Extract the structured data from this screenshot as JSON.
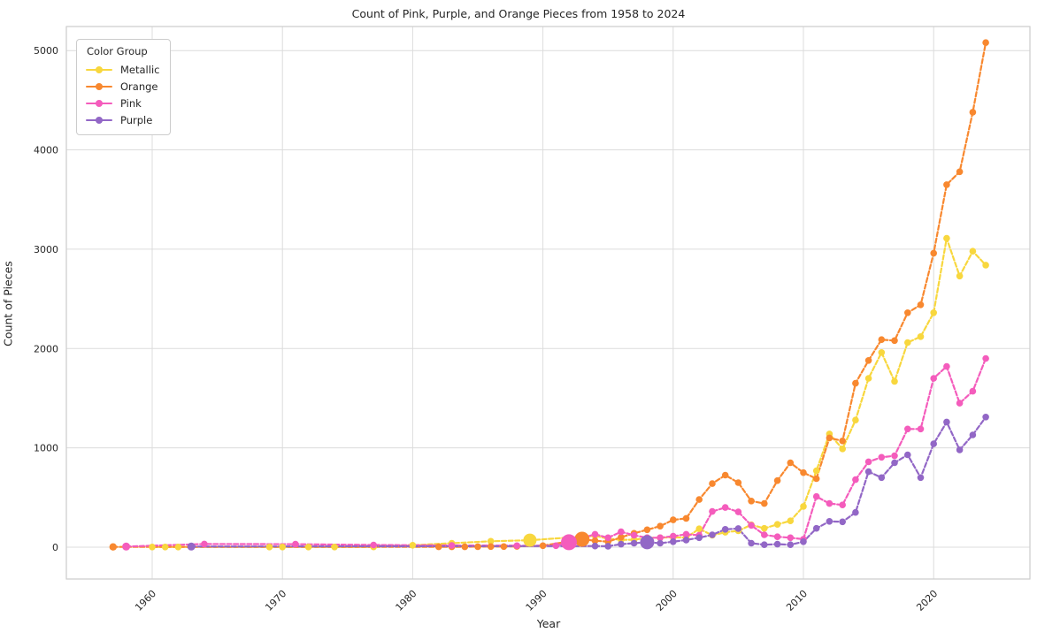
{
  "figure": {
    "title": "Count of Pink, Purple, and Orange Pieces from 1958 to 2024",
    "x_axis_label": "Year",
    "y_axis_label": "Count of Pieces"
  },
  "legend": {
    "title": "Color Group"
  },
  "chart_data": {
    "type": "line",
    "title": "Count of Pink, Purple, and Orange Pieces from 1958 to 2024",
    "xlabel": "Year",
    "ylabel": "Count of Pieces",
    "grid": true,
    "legend_position": "upper left",
    "x_ticks": [
      1960,
      1970,
      1980,
      1990,
      2000,
      2010,
      2020
    ],
    "y_ticks": [
      0,
      1000,
      2000,
      3000,
      4000,
      5000
    ],
    "xlim": [
      1953.4,
      2027.4
    ],
    "ylim": [
      -320,
      5242
    ],
    "line_style": "dashed",
    "marker": "circle",
    "series": [
      {
        "name": "Metallic",
        "color": "#F8D73E",
        "points": [
          [
            1960,
            2
          ],
          [
            1961,
            2
          ],
          [
            1962,
            2
          ],
          [
            1969,
            2
          ],
          [
            1970,
            2
          ],
          [
            1972,
            2
          ],
          [
            1974,
            2
          ],
          [
            1977,
            3
          ],
          [
            1980,
            20
          ],
          [
            1983,
            40
          ],
          [
            1986,
            60
          ],
          [
            1989,
            70
          ],
          [
            1994,
            115
          ],
          [
            1995,
            85
          ],
          [
            1996,
            75
          ],
          [
            1997,
            75
          ],
          [
            1998,
            95
          ],
          [
            1999,
            95
          ],
          [
            2000,
            100
          ],
          [
            2001,
            95
          ],
          [
            2002,
            185
          ],
          [
            2003,
            120
          ],
          [
            2004,
            150
          ],
          [
            2005,
            165
          ],
          [
            2006,
            225
          ],
          [
            2007,
            190
          ],
          [
            2008,
            230
          ],
          [
            2009,
            265
          ],
          [
            2010,
            410
          ],
          [
            2011,
            770
          ],
          [
            2012,
            1140
          ],
          [
            2013,
            990
          ],
          [
            2014,
            1280
          ],
          [
            2015,
            1700
          ],
          [
            2016,
            1960
          ],
          [
            2017,
            1670
          ],
          [
            2018,
            2060
          ],
          [
            2019,
            2120
          ],
          [
            2020,
            2360
          ],
          [
            2021,
            3110
          ],
          [
            2022,
            2730
          ],
          [
            2023,
            2980
          ],
          [
            2024,
            2840
          ]
        ]
      },
      {
        "name": "Orange",
        "color": "#F8882F",
        "points": [
          [
            1957,
            3
          ],
          [
            1982,
            4
          ],
          [
            1983,
            4
          ],
          [
            1984,
            4
          ],
          [
            1985,
            5
          ],
          [
            1986,
            6
          ],
          [
            1987,
            6
          ],
          [
            1988,
            8
          ],
          [
            1990,
            15
          ],
          [
            1993,
            80
          ],
          [
            1994,
            65
          ],
          [
            1995,
            55
          ],
          [
            1996,
            100
          ],
          [
            1997,
            140
          ],
          [
            1998,
            175
          ],
          [
            1999,
            212
          ],
          [
            2000,
            275
          ],
          [
            2001,
            290
          ],
          [
            2002,
            480
          ],
          [
            2003,
            640
          ],
          [
            2004,
            725
          ],
          [
            2005,
            650
          ],
          [
            2006,
            465
          ],
          [
            2007,
            440
          ],
          [
            2008,
            670
          ],
          [
            2009,
            850
          ],
          [
            2010,
            750
          ],
          [
            2011,
            690
          ],
          [
            2012,
            1100
          ],
          [
            2013,
            1070
          ],
          [
            2014,
            1650
          ],
          [
            2015,
            1880
          ],
          [
            2016,
            2090
          ],
          [
            2017,
            2080
          ],
          [
            2018,
            2360
          ],
          [
            2019,
            2440
          ],
          [
            2020,
            2960
          ],
          [
            2021,
            3650
          ],
          [
            2022,
            3780
          ],
          [
            2023,
            4380
          ],
          [
            2024,
            5080
          ]
        ]
      },
      {
        "name": "Pink",
        "color": "#F45CBC",
        "points": [
          [
            1958,
            6
          ],
          [
            1964,
            32
          ],
          [
            1971,
            30
          ],
          [
            1977,
            22
          ],
          [
            1983,
            18
          ],
          [
            1988,
            15
          ],
          [
            1991,
            15
          ],
          [
            1992,
            50
          ],
          [
            1994,
            130
          ],
          [
            1995,
            95
          ],
          [
            1996,
            155
          ],
          [
            1997,
            120
          ],
          [
            1998,
            95
          ],
          [
            1999,
            95
          ],
          [
            2000,
            110
          ],
          [
            2001,
            130
          ],
          [
            2002,
            120
          ],
          [
            2003,
            360
          ],
          [
            2004,
            400
          ],
          [
            2005,
            355
          ],
          [
            2006,
            220
          ],
          [
            2007,
            125
          ],
          [
            2008,
            105
          ],
          [
            2009,
            95
          ],
          [
            2010,
            80
          ],
          [
            2011,
            510
          ],
          [
            2012,
            440
          ],
          [
            2013,
            425
          ],
          [
            2014,
            680
          ],
          [
            2015,
            860
          ],
          [
            2016,
            905
          ],
          [
            2017,
            920
          ],
          [
            2018,
            1190
          ],
          [
            2019,
            1190
          ],
          [
            2020,
            1700
          ],
          [
            2021,
            1820
          ],
          [
            2022,
            1450
          ],
          [
            2023,
            1570
          ],
          [
            2024,
            1900
          ]
        ]
      },
      {
        "name": "Purple",
        "color": "#9267C6",
        "points": [
          [
            1963,
            6
          ],
          [
            1994,
            12
          ],
          [
            1995,
            10
          ],
          [
            1996,
            30
          ],
          [
            1997,
            40
          ],
          [
            1998,
            50
          ],
          [
            1999,
            40
          ],
          [
            2000,
            55
          ],
          [
            2001,
            72
          ],
          [
            2002,
            95
          ],
          [
            2003,
            125
          ],
          [
            2004,
            180
          ],
          [
            2005,
            188
          ],
          [
            2006,
            40
          ],
          [
            2007,
            25
          ],
          [
            2008,
            30
          ],
          [
            2009,
            25
          ],
          [
            2010,
            55
          ],
          [
            2011,
            190
          ],
          [
            2012,
            260
          ],
          [
            2013,
            255
          ],
          [
            2014,
            350
          ],
          [
            2015,
            760
          ],
          [
            2016,
            700
          ],
          [
            2017,
            850
          ],
          [
            2018,
            930
          ],
          [
            2019,
            700
          ],
          [
            2020,
            1040
          ],
          [
            2021,
            1260
          ],
          [
            2022,
            980
          ],
          [
            2023,
            1130
          ],
          [
            2024,
            1310
          ]
        ]
      }
    ],
    "emphasis_markers": [
      {
        "series": "Orange",
        "year": 1957,
        "radius": 4.2
      },
      {
        "series": "Pink",
        "year": 1958,
        "radius": 4.5
      },
      {
        "series": "Purple",
        "year": 1963,
        "radius": 4.5
      },
      {
        "series": "Metallic",
        "year": 1989,
        "radius": 7.5
      },
      {
        "series": "Pink",
        "year": 1992,
        "radius": 9.0
      },
      {
        "series": "Orange",
        "year": 1993,
        "radius": 8.5
      },
      {
        "series": "Purple",
        "year": 1998,
        "radius": 8.0
      }
    ]
  }
}
